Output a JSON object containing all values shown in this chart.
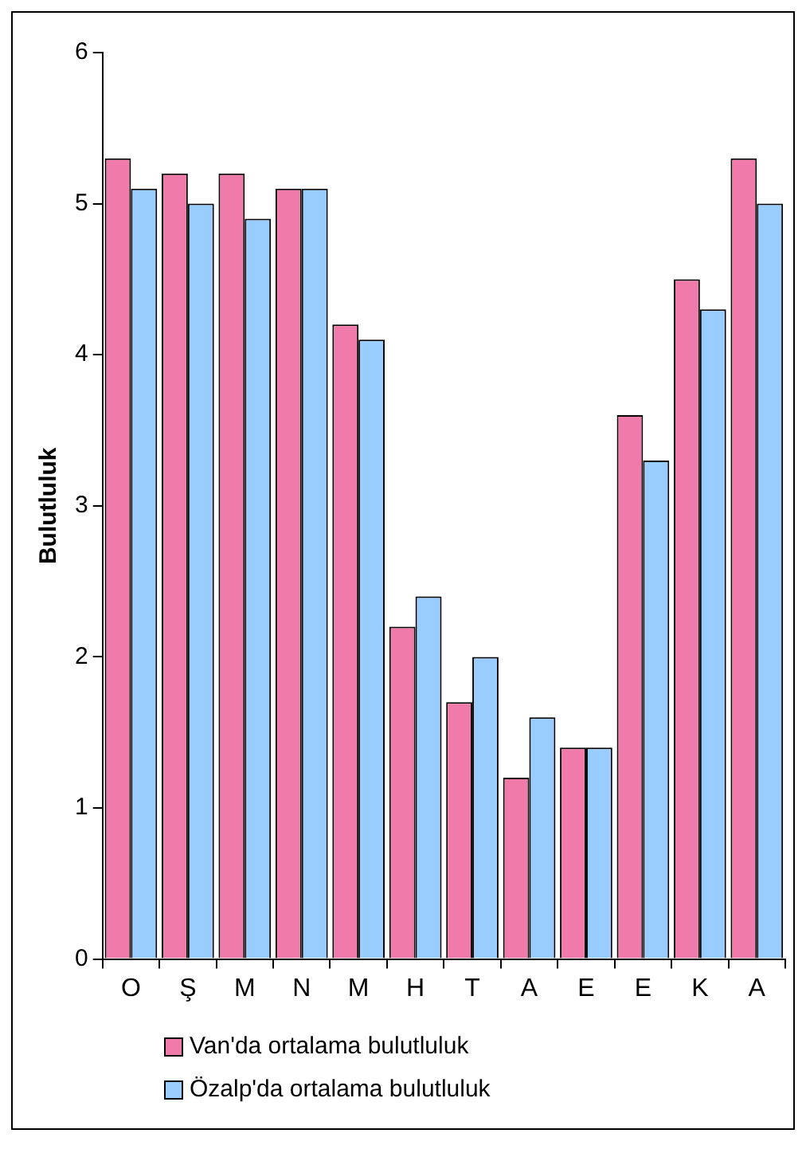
{
  "chart_data": {
    "type": "bar",
    "ylabel": "Bulutluluk",
    "categories": [
      "O",
      "Ş",
      "M",
      "N",
      "M",
      "H",
      "T",
      "A",
      "E",
      "E",
      "K",
      "A"
    ],
    "series": [
      {
        "name": "Van'da ortalama bulutluluk",
        "color": "#f07aaa",
        "values": [
          5.3,
          5.2,
          5.2,
          5.1,
          4.2,
          2.2,
          1.7,
          1.2,
          1.4,
          3.6,
          4.5,
          5.3
        ]
      },
      {
        "name": "Özalp'da ortalama bulutluluk",
        "color": "#99ccff",
        "values": [
          5.1,
          5.0,
          4.9,
          5.1,
          4.1,
          2.4,
          2.0,
          1.6,
          1.4,
          3.3,
          4.3,
          5.0
        ]
      }
    ],
    "ylim": [
      0,
      6
    ],
    "yticks": [
      0,
      1,
      2,
      3,
      4,
      5,
      6
    ],
    "grid": false,
    "legend": "bottom"
  }
}
